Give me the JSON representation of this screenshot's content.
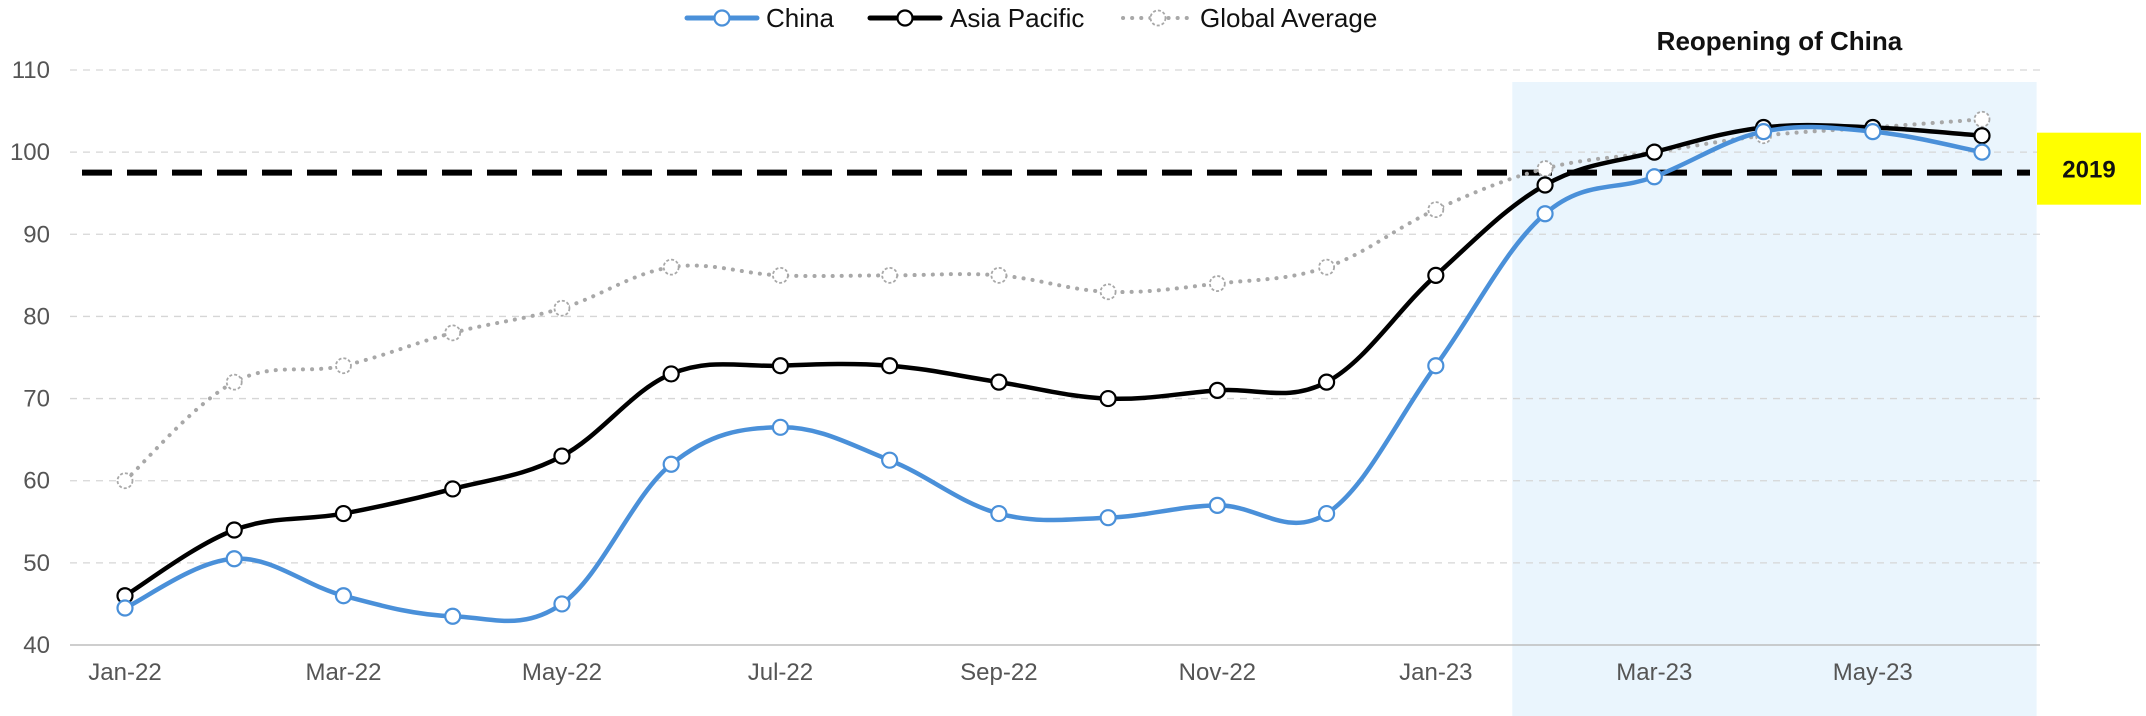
{
  "chart_data": {
    "type": "line",
    "title": "",
    "xlabel": "",
    "ylabel": "",
    "categories": [
      "Jan-22",
      "Feb-22",
      "Mar-22",
      "Apr-22",
      "May-22",
      "Jun-22",
      "Jul-22",
      "Aug-22",
      "Sep-22",
      "Oct-22",
      "Nov-22",
      "Dec-22",
      "Jan-23",
      "Feb-23",
      "Mar-23",
      "Apr-23",
      "May-23",
      "Jun-23"
    ],
    "x_tick_labels": [
      "Jan-22",
      "Mar-22",
      "May-22",
      "Jul-22",
      "Sep-22",
      "Nov-22",
      "Jan-23",
      "Mar-23",
      "May-23"
    ],
    "ylim": [
      40,
      110
    ],
    "y_ticks": [
      40,
      50,
      60,
      70,
      80,
      90,
      100,
      110
    ],
    "grid": "horizontal dashed",
    "legend_position": "top-center",
    "series": [
      {
        "name": "China",
        "color": "#4a90d9",
        "style": "solid",
        "values": [
          44.5,
          50.5,
          46,
          43.5,
          45,
          62,
          66.5,
          62.5,
          56,
          55.5,
          57,
          56,
          74,
          92.5,
          97,
          102.5,
          102.5,
          100
        ]
      },
      {
        "name": "Asia Pacific",
        "color": "#000000",
        "style": "solid",
        "values": [
          46,
          54,
          56,
          59,
          63,
          73,
          74,
          74,
          72,
          70,
          71,
          72,
          85,
          96,
          100,
          103,
          103,
          102
        ]
      },
      {
        "name": "Global Average",
        "color": "#a8a8a8",
        "style": "dotted",
        "values": [
          60,
          72,
          74,
          78,
          81,
          86,
          85,
          85,
          85,
          83,
          84,
          86,
          93,
          98,
          100,
          102,
          103,
          104
        ]
      }
    ],
    "reference_line": {
      "label": "2019",
      "value": 97.5,
      "badge_color": "#ffff00"
    },
    "shaded_region": {
      "label": "Reopening of China",
      "from": "Feb-23",
      "to": "Jun-23",
      "color": "#eaf5fd"
    }
  }
}
